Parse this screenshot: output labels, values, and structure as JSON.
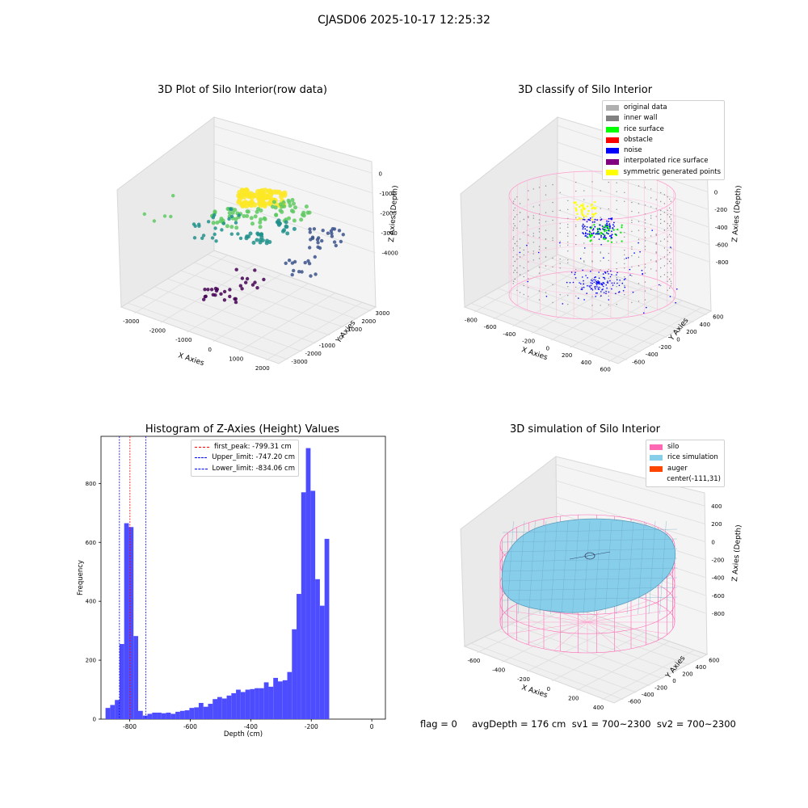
{
  "suptitle": "CJASD06 2025-10-17 12:25:32",
  "colors": {
    "hist_bar": "#4d4dff",
    "first_peak": "#ff0000",
    "limit_line": "#0000ff",
    "pane_fill": "#f2f2f2",
    "grid": "#e0e0e0"
  },
  "panel1": {
    "title": "3D Plot of Silo Interior(row data)",
    "type": "scatter3d",
    "colormap": "viridis",
    "xlabel": "X Axies",
    "ylabel": "Y Axies",
    "zlabel": "Z Axies (Depth)",
    "x_ticks": [
      "-3000",
      "-2000",
      "-1000",
      "0",
      "1000",
      "2000"
    ],
    "y_ticks": [
      "-3000",
      "-2000",
      "-1000",
      "0",
      "1000",
      "2000",
      "3000"
    ],
    "z_ticks": [
      "-4000",
      "-3000",
      "-2000",
      "-1000",
      "0"
    ]
  },
  "panel2": {
    "title": "3D classify of Silo Interior",
    "xlabel": "X Axies",
    "ylabel": "Y Axies",
    "zlabel": "Z Axies (Depth)",
    "x_ticks": [
      "-800",
      "-600",
      "-400",
      "-200",
      "0",
      "200",
      "400",
      "600"
    ],
    "y_ticks": [
      "-600",
      "-400",
      "-200",
      "0",
      "200",
      "400",
      "600"
    ],
    "z_ticks": [
      "-800",
      "-600",
      "-400",
      "-200",
      "0",
      "200"
    ],
    "legend": [
      {
        "label": "original data",
        "color": "#b0b0b0"
      },
      {
        "label": "inner wall",
        "color": "#808080"
      },
      {
        "label": "rice surface",
        "color": "#00ff00"
      },
      {
        "label": "obstacle",
        "color": "#ff0000"
      },
      {
        "label": "noise",
        "color": "#0000ff"
      },
      {
        "label": "interpolated rice surface",
        "color": "#800080"
      },
      {
        "label": "symmetric generated points",
        "color": "#ffff00"
      }
    ]
  },
  "chart_data": {
    "type": "bar",
    "title": "Histogram of Z-Axies (Height) Values",
    "xlabel": "Depth (cm)",
    "ylabel": "Frequency",
    "xlim": [
      -895,
      45
    ],
    "ylim": [
      0,
      960
    ],
    "x_ticks": [
      -800,
      -600,
      -400,
      -200,
      0
    ],
    "y_ticks": [
      0,
      200,
      400,
      600,
      800
    ],
    "bin_start": -880,
    "bin_width": 15.4,
    "values": [
      38,
      48,
      65,
      255,
      665,
      652,
      282,
      28,
      12,
      18,
      22,
      22,
      20,
      22,
      18,
      25,
      28,
      30,
      38,
      40,
      55,
      42,
      52,
      68,
      75,
      70,
      80,
      88,
      100,
      92,
      100,
      102,
      105,
      105,
      125,
      110,
      140,
      128,
      132,
      160,
      305,
      425,
      770,
      920,
      775,
      475,
      385,
      612
    ],
    "lines": [
      {
        "label": "first_peak: -799.31 cm",
        "x": -799.31,
        "color": "#ff0000"
      },
      {
        "label": "Upper_limit: -747.20 cm",
        "x": -747.2,
        "color": "#0000ff"
      },
      {
        "label": "Lower_limit: -834.06 cm",
        "x": -834.06,
        "color": "#0000ff"
      }
    ]
  },
  "panel4": {
    "title": "3D simulation of Silo Interior",
    "xlabel": "X Axies",
    "ylabel": "Y Axies",
    "zlabel": "Z Axies (Depth)",
    "x_ticks": [
      "-600",
      "-400",
      "-200",
      "0",
      "200",
      "400"
    ],
    "y_ticks": [
      "-600",
      "-400",
      "-200",
      "0",
      "200",
      "400",
      "600"
    ],
    "z_ticks": [
      "-800",
      "-600",
      "-400",
      "-200",
      "0",
      "200",
      "400"
    ],
    "legend": [
      {
        "label": "silo",
        "color": "#ff69b4"
      },
      {
        "label": "rice simulation",
        "color": "#87ceeb"
      },
      {
        "label": "auger",
        "color": "#ff4500"
      },
      {
        "label": "center(-111,31)",
        "color": "#ffffff"
      }
    ]
  },
  "footer": "flag = 0     avgDepth = 176 cm  sv1 = 700~2300  sv2 = 700~2300"
}
